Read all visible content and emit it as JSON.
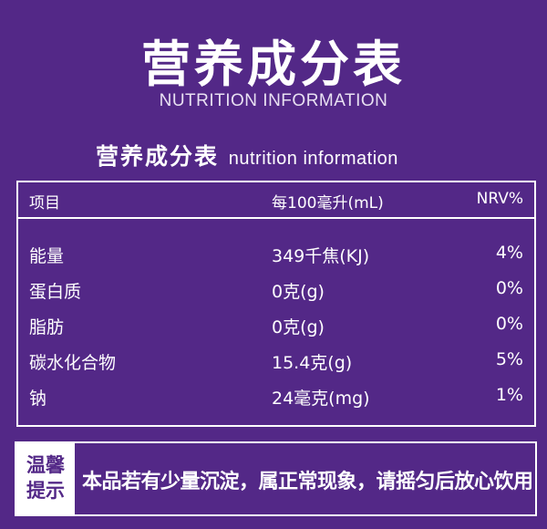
{
  "title_cn": "营养成分表",
  "title_en": "NUTRITION INFORMATION",
  "subtitle_cn": "营养成分表",
  "subtitle_en": "nutrition  information",
  "table": {
    "headers": [
      "项目",
      "每100毫升(mL)",
      "NRV%"
    ],
    "rows": [
      [
        "能量",
        "349千焦(KJ)",
        "4%"
      ],
      [
        "蛋白质",
        "0克(g)",
        "0%"
      ],
      [
        "脂肪",
        "0克(g)",
        "0%"
      ],
      [
        "碳水化合物",
        "15.4克(g)",
        "5%"
      ],
      [
        "钠",
        "24毫克(mg)",
        "1%"
      ]
    ]
  },
  "notice": {
    "label_line1": "温馨",
    "label_line2": "提示",
    "text": "本品若有少量沉淀，属正常现象，请摇匀后放心饮用"
  },
  "colors": {
    "background": "#532887",
    "text": "#ffffff"
  }
}
